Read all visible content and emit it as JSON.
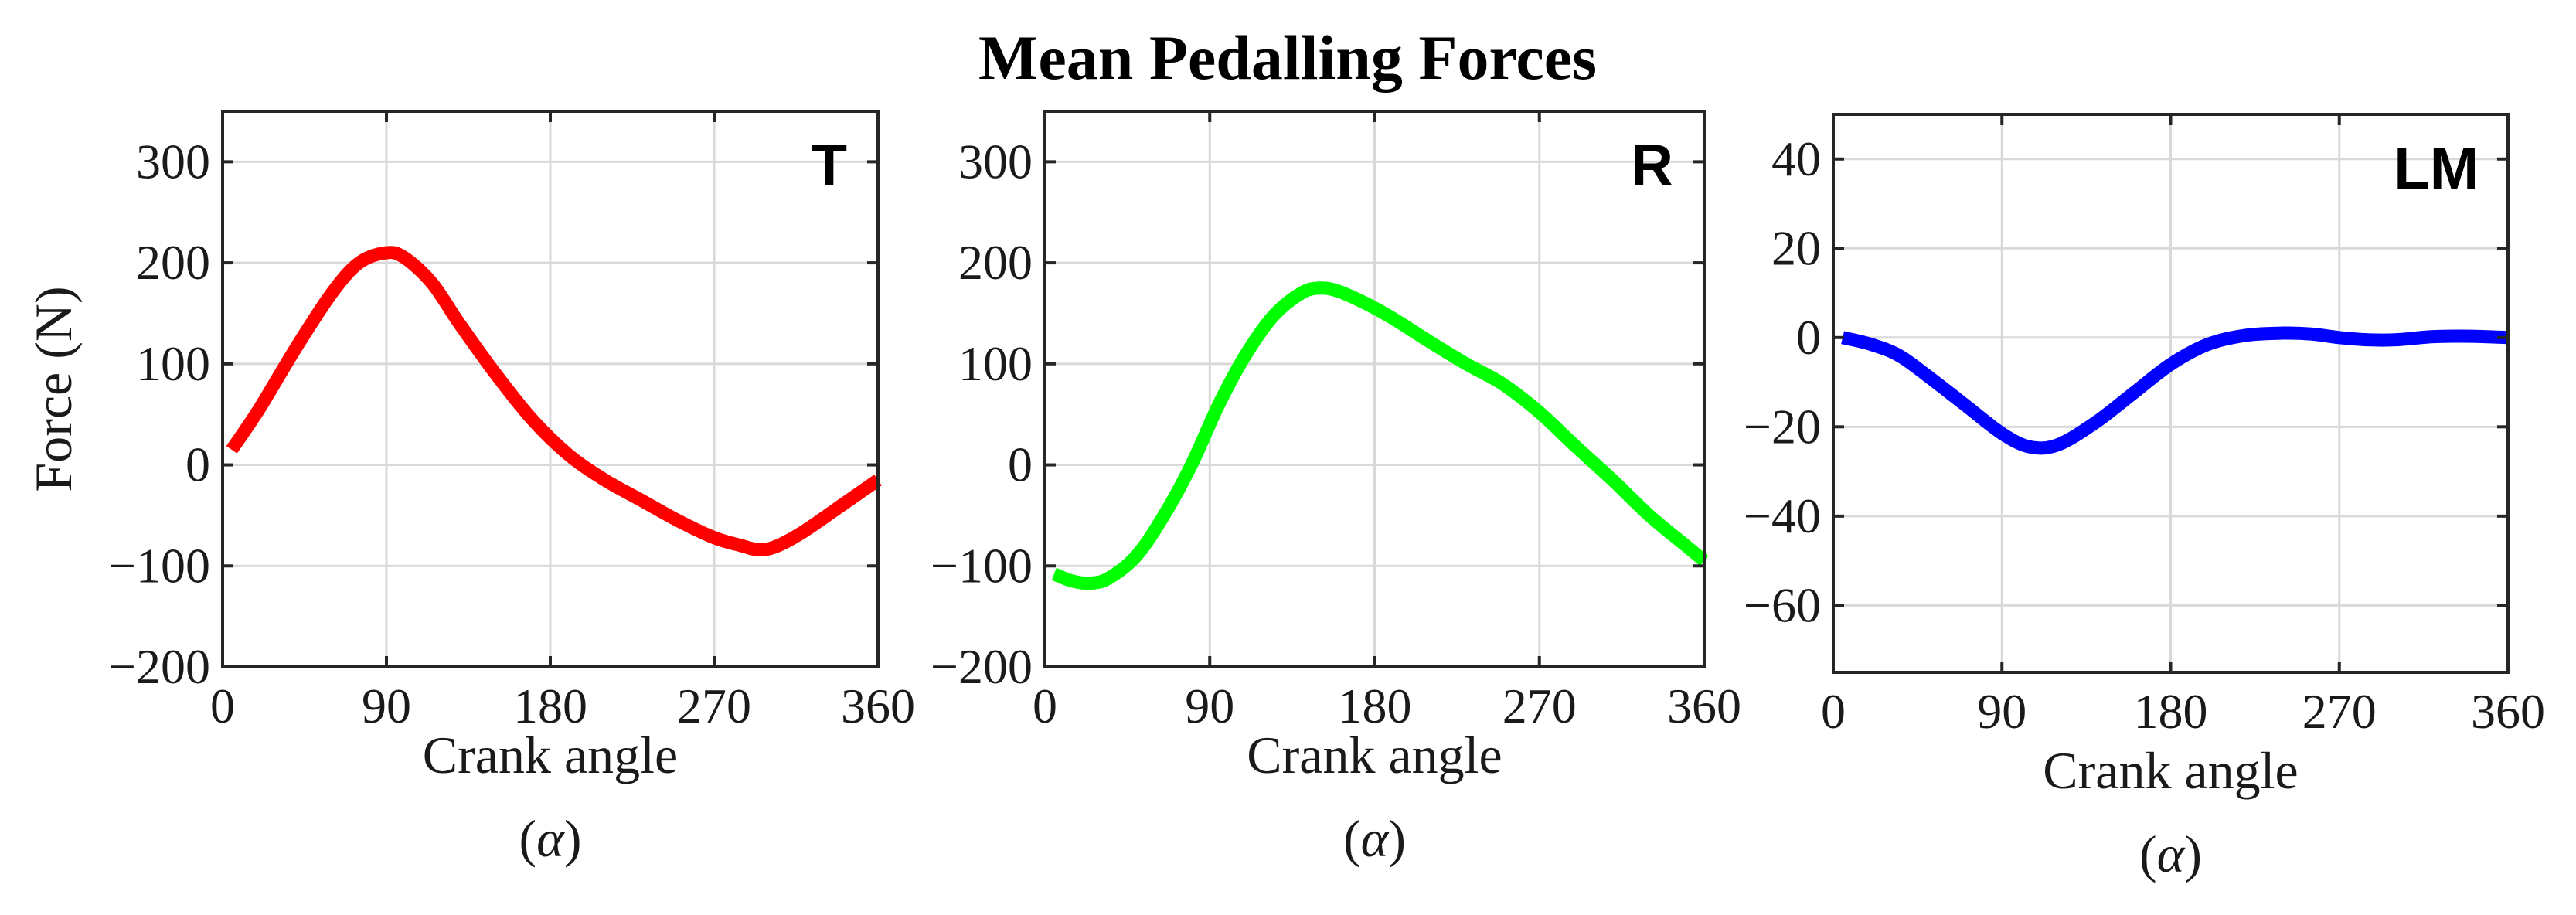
{
  "title": "Mean Pedalling Forces",
  "chart_data": [
    {
      "type": "line",
      "panel_label": "T",
      "ylabel": "Force (N)",
      "xlabel_line1": "Crank angle",
      "xlabel_line2_open": "(",
      "xlabel_line2_symbol": "α",
      "xlabel_line2_close": ")",
      "xlim": [
        0,
        360
      ],
      "ylim": [
        -200,
        350
      ],
      "xticks": [
        0,
        90,
        180,
        270,
        360
      ],
      "yticks": [
        -200,
        -100,
        0,
        100,
        200,
        300
      ],
      "xtick_labels": [
        "0",
        "90",
        "180",
        "270",
        "360"
      ],
      "ytick_labels": [
        "−200",
        "−100",
        "0",
        "100",
        "200",
        "300"
      ],
      "grid": true,
      "series": [
        {
          "name": "T",
          "color": "#ff0000",
          "x": [
            5,
            20,
            40,
            60,
            75,
            90,
            100,
            115,
            130,
            150,
            170,
            190,
            210,
            230,
            250,
            270,
            285,
            295,
            305,
            320,
            340,
            360
          ],
          "y": [
            15,
            55,
            115,
            170,
            200,
            210,
            205,
            180,
            140,
            90,
            45,
            10,
            -15,
            -35,
            -55,
            -72,
            -80,
            -84,
            -80,
            -65,
            -40,
            -15
          ]
        }
      ]
    },
    {
      "type": "line",
      "panel_label": "R",
      "xlabel_line1": "Crank angle",
      "xlabel_line2_open": "(",
      "xlabel_line2_symbol": "α",
      "xlabel_line2_close": ")",
      "xlim": [
        0,
        360
      ],
      "ylim": [
        -200,
        350
      ],
      "xticks": [
        0,
        90,
        180,
        270,
        360
      ],
      "yticks": [
        -200,
        -100,
        0,
        100,
        200,
        300
      ],
      "xtick_labels": [
        "0",
        "90",
        "180",
        "270",
        "360"
      ],
      "ytick_labels": [
        "−200",
        "−100",
        "0",
        "100",
        "200",
        "300"
      ],
      "grid": true,
      "series": [
        {
          "name": "R",
          "color": "#00ff00",
          "x": [
            5,
            15,
            25,
            35,
            50,
            65,
            80,
            95,
            110,
            125,
            140,
            150,
            160,
            175,
            190,
            210,
            230,
            250,
            270,
            290,
            310,
            330,
            350,
            360
          ],
          "y": [
            -108,
            -115,
            -117,
            -112,
            -90,
            -50,
            0,
            60,
            110,
            148,
            170,
            175,
            172,
            160,
            145,
            122,
            100,
            80,
            52,
            18,
            -15,
            -50,
            -80,
            -95
          ]
        }
      ]
    },
    {
      "type": "line",
      "panel_label": "LM",
      "xlabel_line1": "Crank angle",
      "xlabel_line2_open": "(",
      "xlabel_line2_symbol": "α",
      "xlabel_line2_close": ")",
      "xlim": [
        0,
        360
      ],
      "ylim": [
        -75,
        50
      ],
      "xticks": [
        0,
        90,
        180,
        270,
        360
      ],
      "yticks": [
        -60,
        -40,
        -20,
        0,
        20,
        40
      ],
      "xtick_labels": [
        "0",
        "90",
        "180",
        "270",
        "360"
      ],
      "ytick_labels": [
        "−60",
        "−40",
        "−20",
        "0",
        "20",
        "40"
      ],
      "grid": true,
      "series": [
        {
          "name": "LM",
          "color": "#0000ff",
          "x": [
            5,
            20,
            35,
            50,
            70,
            90,
            105,
            120,
            140,
            160,
            180,
            200,
            220,
            240,
            255,
            270,
            285,
            300,
            320,
            340,
            360
          ],
          "y": [
            0,
            -1.5,
            -4,
            -8.5,
            -15,
            -21.5,
            -24.5,
            -24,
            -19,
            -12.5,
            -6,
            -1.5,
            0.5,
            1,
            0.8,
            0,
            -0.5,
            -0.5,
            0.2,
            0.3,
            0
          ]
        }
      ]
    }
  ]
}
